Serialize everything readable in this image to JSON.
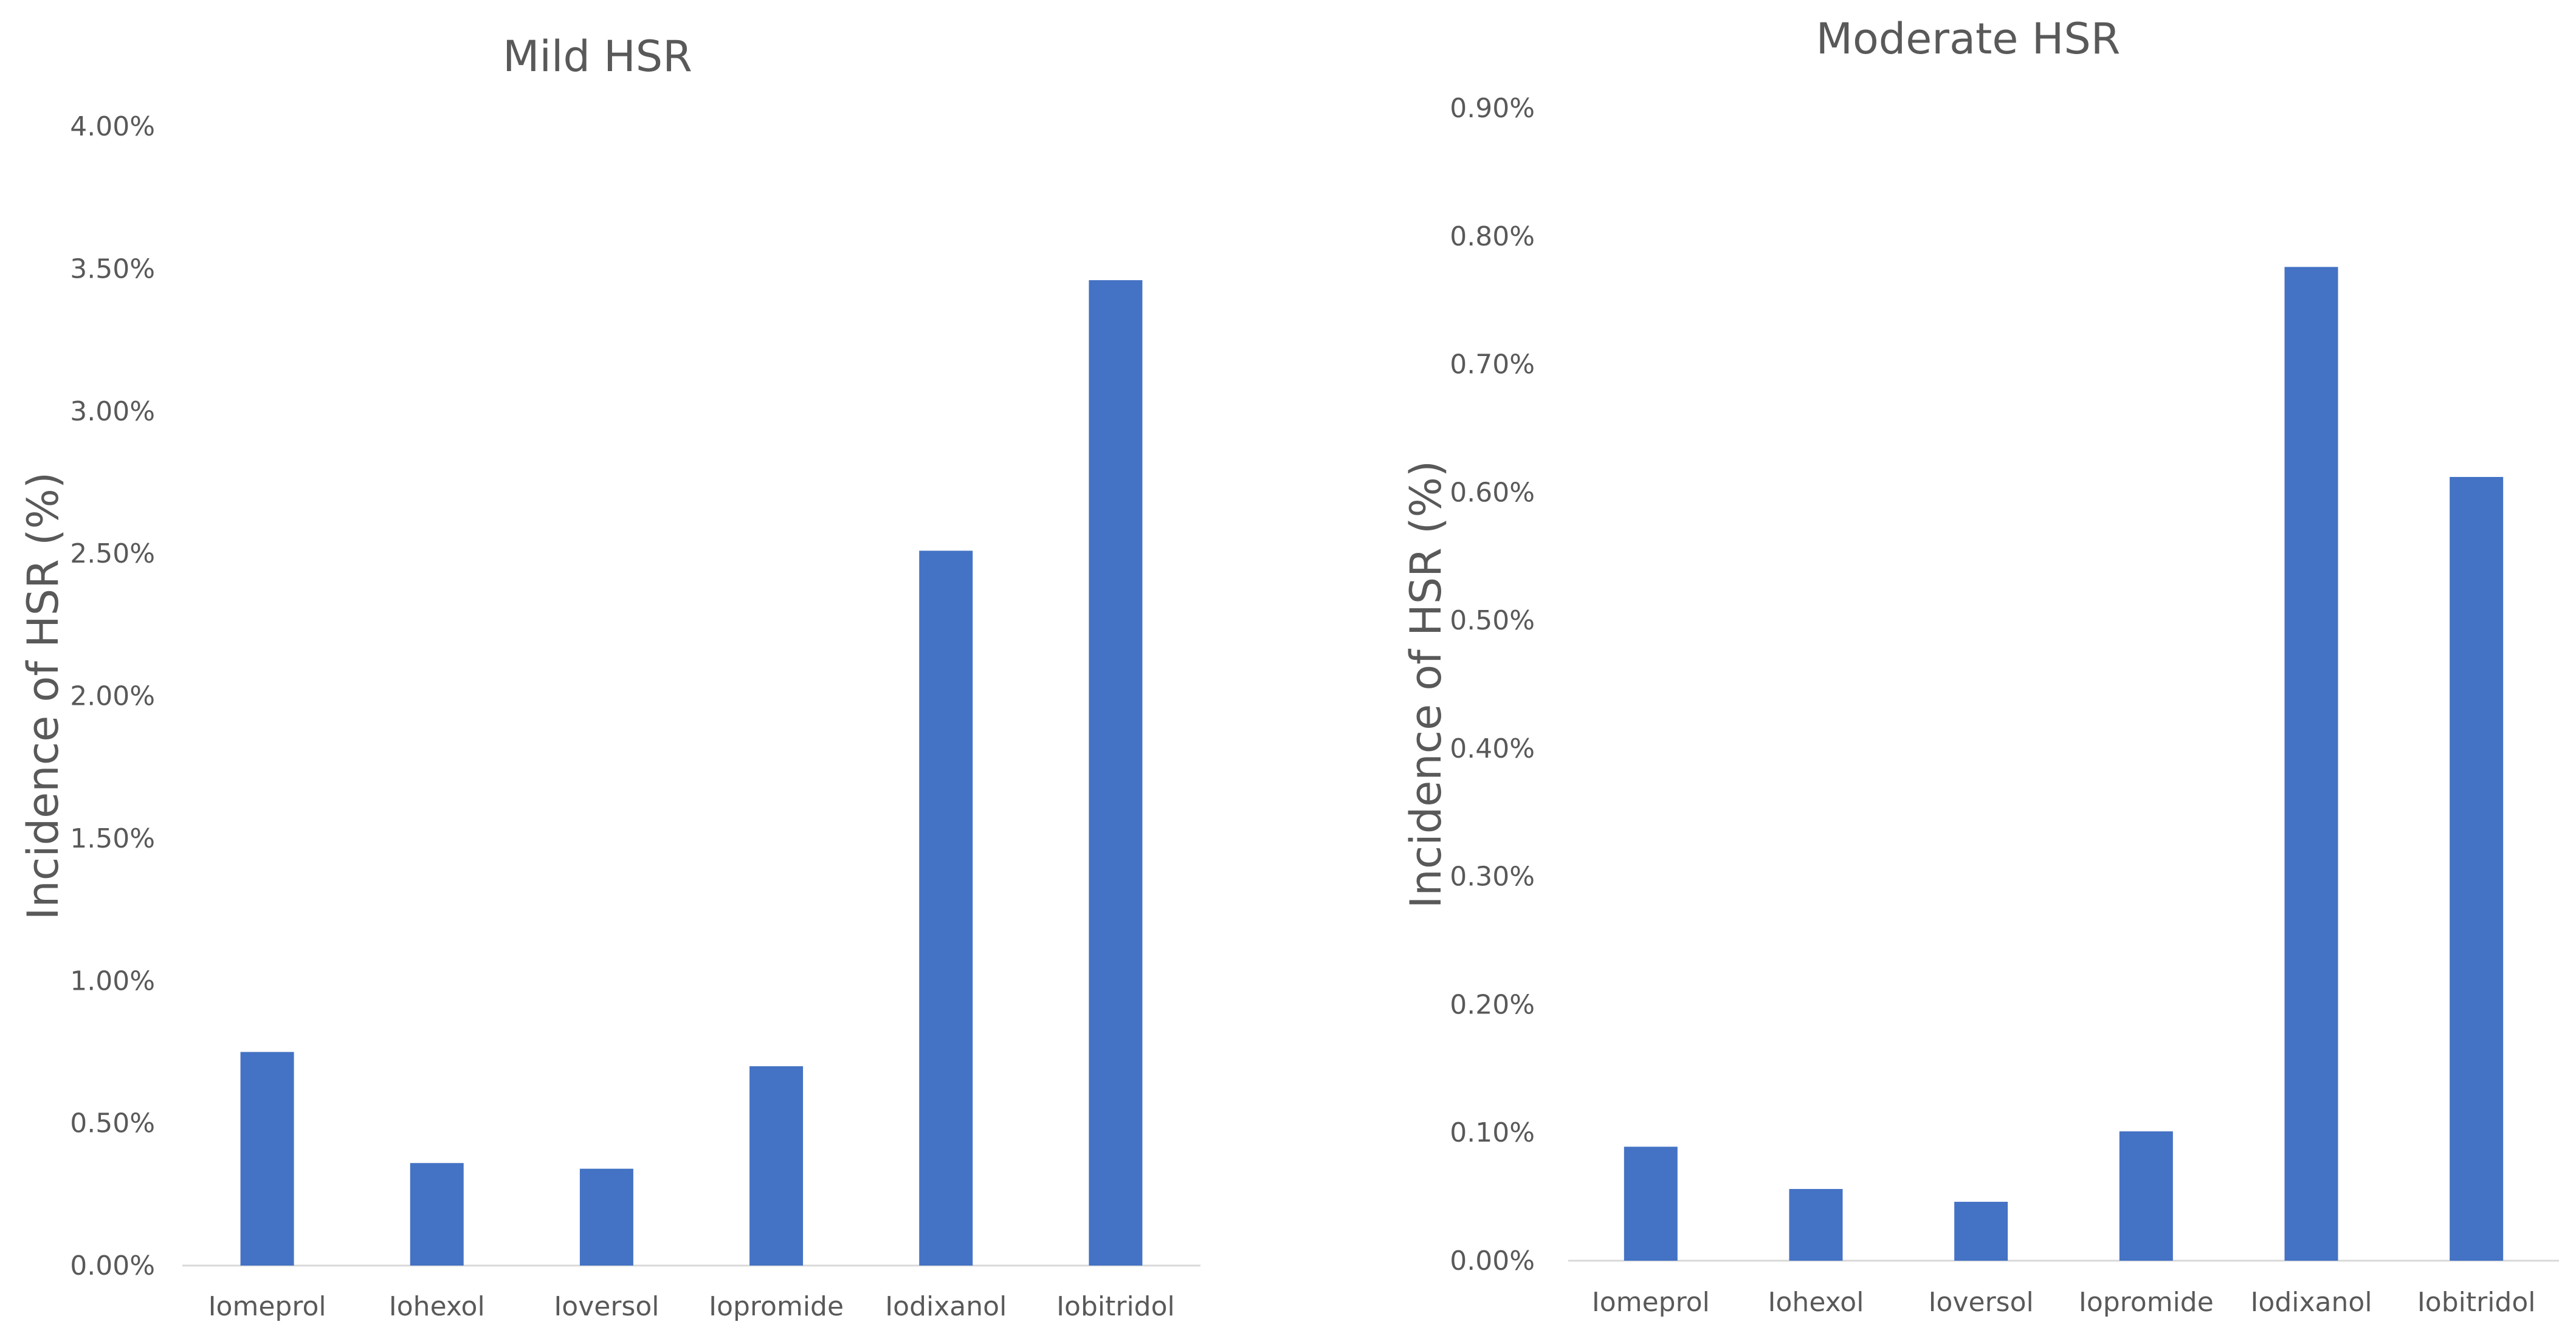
{
  "colors": {
    "bar": "#4472c4",
    "text": "#595959",
    "axis": "#d9d9d9"
  },
  "chart_data": [
    {
      "type": "bar",
      "title": "Mild HSR",
      "xlabel": "",
      "ylabel": "Incidence of HSR (%)",
      "ylim": [
        0,
        4
      ],
      "yticks": [
        "0.00%",
        "0.50%",
        "1.00%",
        "1.50%",
        "2.00%",
        "2.50%",
        "3.00%",
        "3.50%",
        "4.00%"
      ],
      "grid": false,
      "categories": [
        "Iomeprol",
        "Iohexol",
        "Ioversol",
        "Iopromide",
        "Iodixanol",
        "Iobitridol"
      ],
      "values": [
        0.75,
        0.36,
        0.34,
        0.7,
        2.51,
        3.46
      ]
    },
    {
      "type": "bar",
      "title": "Moderate HSR",
      "xlabel": "",
      "ylabel": "Incidence of HSR (%)",
      "ylim": [
        0,
        0.9
      ],
      "yticks": [
        "0.00%",
        "0.10%",
        "0.20%",
        "0.30%",
        "0.40%",
        "0.50%",
        "0.60%",
        "0.70%",
        "0.80%",
        "0.90%"
      ],
      "grid": false,
      "categories": [
        "Iomeprol",
        "Iohexol",
        "Ioversol",
        "Iopromide",
        "Iodixanol",
        "Iobitridol"
      ],
      "values": [
        0.089,
        0.056,
        0.046,
        0.101,
        0.776,
        0.612
      ]
    }
  ]
}
